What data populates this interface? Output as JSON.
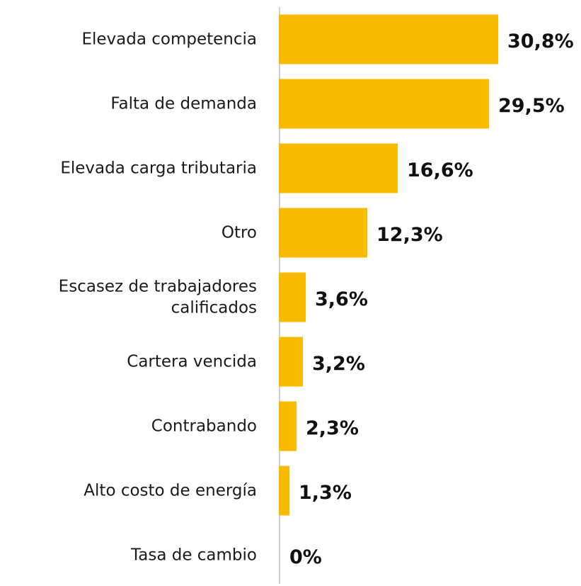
{
  "chart_data": {
    "type": "bar",
    "orientation": "horizontal",
    "color": "#f9bb00",
    "categories": [
      "Elevada competencia",
      "Falta de demanda",
      "Elevada carga tributaria",
      "Otro",
      "Escasez de trabajadores\ncalificados",
      "Cartera vencida",
      "Contrabando",
      "Alto costo de energía",
      "Tasa de cambio"
    ],
    "values": [
      30.8,
      29.5,
      16.6,
      12.3,
      3.6,
      3.2,
      2.3,
      1.3,
      0
    ],
    "value_labels": [
      "30,8%",
      "29,5%",
      "16,6%",
      "12,3%",
      "3,6%",
      "3,2%",
      "2,3%",
      "1,3%",
      "0%"
    ]
  }
}
